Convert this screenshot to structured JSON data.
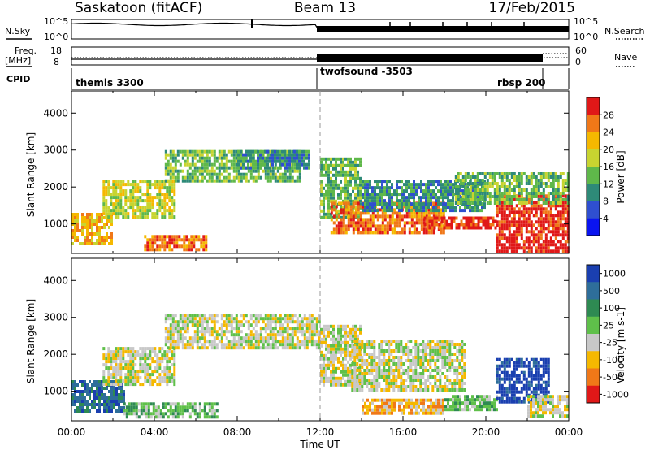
{
  "header": {
    "station": "Saskatoon (fitACF)",
    "beam": "Beam 13",
    "date": "17/Feb/2015"
  },
  "left_labels": {
    "nsky": "N.Sky",
    "freq_line1": "Freq.",
    "freq_line2": "[MHz]",
    "cpid": "CPID"
  },
  "right_labels": {
    "nsearch": "N.Search",
    "nave": "Nave"
  },
  "nsky_axis": {
    "top": "10^5",
    "bottom": "10^0"
  },
  "nsearch_axis": {
    "top": "10^5",
    "bottom": "10^0"
  },
  "freq_axis": {
    "top": "18",
    "bottom": "8"
  },
  "nave_axis": {
    "top": "60",
    "bottom": "0"
  },
  "cpid_segments": [
    {
      "label": "themis 3300",
      "start_hour": 0,
      "end_hour": 12
    },
    {
      "label": "twofsound -3503",
      "start_hour": 12,
      "end_hour": 23
    },
    {
      "label": "rbsp 200",
      "start_hour": 19.5,
      "end_hour": 23
    }
  ],
  "chart_data": [
    {
      "type": "heatmap",
      "name": "power-panel",
      "ylabel": "Slant Range [km]",
      "ylim": [
        200,
        4600
      ],
      "yticks": [
        "1000",
        "2000",
        "3000",
        "4000"
      ],
      "xlim_hours": [
        0,
        24
      ],
      "colorbar": {
        "label": "Power [dB]",
        "ticks": [
          "4",
          "8",
          "12",
          "16",
          "20",
          "24",
          "28"
        ],
        "colors": [
          "#0a14f0",
          "#2f4fd0",
          "#2e8a78",
          "#5fb84a",
          "#c8d430",
          "#f5b800",
          "#f07818",
          "#e01818"
        ]
      },
      "bands": [
        {
          "t0": 0.0,
          "t1": 2.0,
          "r0": 500,
          "r1": 1300,
          "level": 5
        },
        {
          "t0": 1.5,
          "t1": 5.0,
          "r0": 1200,
          "r1": 2200,
          "level": 4
        },
        {
          "t0": 3.5,
          "t1": 6.5,
          "r0": 300,
          "r1": 700,
          "level": 6
        },
        {
          "t0": 4.5,
          "t1": 11.0,
          "r0": 2200,
          "r1": 3000,
          "level": 3
        },
        {
          "t0": 8.0,
          "t1": 11.5,
          "r0": 2500,
          "r1": 3000,
          "level": 2
        },
        {
          "t0": 12.0,
          "t1": 14.0,
          "r0": 1200,
          "r1": 2800,
          "level": 3
        },
        {
          "t0": 12.5,
          "t1": 18.0,
          "r0": 800,
          "r1": 1600,
          "level": 6
        },
        {
          "t0": 17.0,
          "t1": 20.5,
          "r0": 900,
          "r1": 1200,
          "level": 7
        },
        {
          "t0": 14.0,
          "t1": 20.0,
          "r0": 1400,
          "r1": 2200,
          "level": 2
        },
        {
          "t0": 20.5,
          "t1": 24.0,
          "r0": 300,
          "r1": 1800,
          "level": 7
        },
        {
          "t0": 18.5,
          "t1": 24.0,
          "r0": 1600,
          "r1": 2400,
          "level": 3
        }
      ]
    },
    {
      "type": "heatmap",
      "name": "velocity-panel",
      "ylabel": "Slant Range [km]",
      "xlabel": "Time UT",
      "ylim": [
        200,
        4600
      ],
      "yticks": [
        "1000",
        "2000",
        "3000",
        "4000"
      ],
      "xticks": [
        "00:00",
        "04:00",
        "08:00",
        "12:00",
        "16:00",
        "20:00",
        "00:00"
      ],
      "xlim_hours": [
        0,
        24
      ],
      "colorbar": {
        "label": "Velocity [m s-1]",
        "ticks": [
          "1000",
          "500",
          "100",
          "25",
          "-25",
          "-100",
          "-500",
          "-1000"
        ],
        "colors": [
          "#1a3fb0",
          "#2e6e9a",
          "#2e8a52",
          "#5fc04a",
          "#c8c8c8",
          "#f5b800",
          "#f07818",
          "#e01818"
        ]
      },
      "bands": [
        {
          "t0": 0.0,
          "t1": 2.5,
          "r0": 500,
          "r1": 1300,
          "level": 1
        },
        {
          "t0": 1.5,
          "t1": 5.0,
          "r0": 1200,
          "r1": 2200,
          "level": 4
        },
        {
          "t0": 2.5,
          "t1": 7.0,
          "r0": 300,
          "r1": 700,
          "level": 3
        },
        {
          "t0": 4.5,
          "t1": 12.0,
          "r0": 2200,
          "r1": 3100,
          "level": 4
        },
        {
          "t0": 12.0,
          "t1": 14.0,
          "r0": 1200,
          "r1": 2800,
          "level": 4
        },
        {
          "t0": 13.5,
          "t1": 19.0,
          "r0": 1000,
          "r1": 2400,
          "level": 4
        },
        {
          "t0": 14.0,
          "t1": 18.0,
          "r0": 400,
          "r1": 800,
          "level": 5
        },
        {
          "t0": 18.0,
          "t1": 20.5,
          "r0": 500,
          "r1": 900,
          "level": 3
        },
        {
          "t0": 20.5,
          "t1": 23.0,
          "r0": 700,
          "r1": 1900,
          "level": 0
        },
        {
          "t0": 22.0,
          "t1": 24.0,
          "r0": 300,
          "r1": 900,
          "level": 4
        }
      ]
    }
  ]
}
